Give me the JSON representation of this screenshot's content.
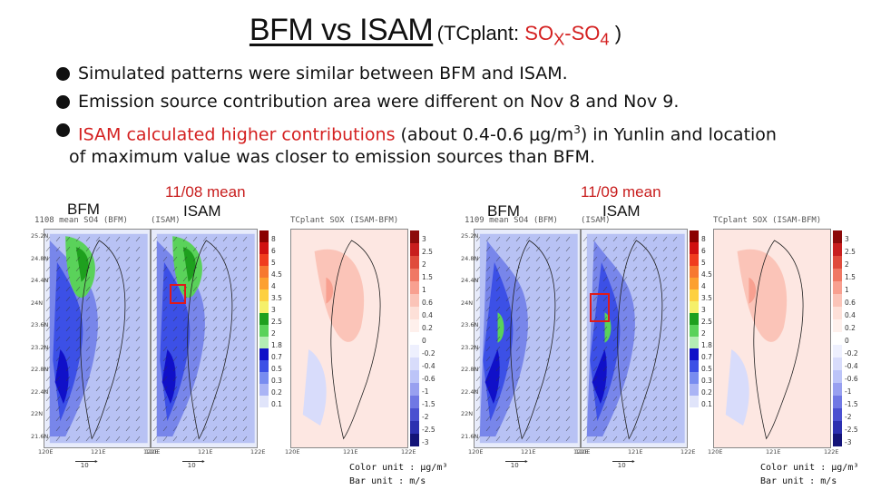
{
  "title": {
    "main": "BFM vs ISAM",
    "sub_prefix": "(TCplant: ",
    "sub_species_a": "SO",
    "sub_species_a_sub": "X",
    "sub_dash": "-SO",
    "sub_species_b_sub": "4",
    "sub_suffix": " )"
  },
  "bullets": {
    "b1": "Simulated patterns were similar between BFM and ISAM.",
    "b2": "Emission source contribution area were different on Nov 8 and Nov 9.",
    "b3_red": "ISAM calculated higher contributions",
    "b3_rest": " (about 0.4-0.6 μg/m",
    "b3_sup": "3",
    "b3_end": ") in Yunlin and location",
    "b3_cont": "of maximum value was closer to emission sources than BFM."
  },
  "labels": {
    "bfm1": "BFM",
    "mean1": "11/08 mean",
    "isam1": "ISAM",
    "bfm2": "BFM",
    "mean2": "11/09 mean",
    "isam2": "ISAM"
  },
  "panels": {
    "p1_title": "1108 mean SO4 (BFM)",
    "p2_title": "(ISAM)",
    "p3_title": "TCplant SOX (ISAM-BFM)",
    "p4_title": "1109 mean SO4 (BFM)",
    "p5_title": "(ISAM)",
    "p6_title": "TCplant SOX (ISAM-BFM)"
  },
  "colorbar_conc_ticks": [
    "8",
    "6",
    "5",
    "4.5",
    "4",
    "3.5",
    "3",
    "2.5",
    "2",
    "1.8",
    "0.7",
    "0.5",
    "0.3",
    "0.2",
    "0.1"
  ],
  "colorbar_diff_ticks": [
    "3",
    "2.5",
    "2",
    "1.5",
    "1",
    "0.6",
    "0.4",
    "0.2",
    "0",
    "-0.2",
    "-0.4",
    "-0.6",
    "-1",
    "-1.5",
    "-2",
    "-2.5",
    "-3"
  ],
  "lat_ticks": [
    "25.2N",
    "24.8N",
    "24.4N",
    "24N",
    "23.6N",
    "23.2N",
    "22.8N",
    "22.4N",
    "22N",
    "21.6N"
  ],
  "lon_ticks": [
    "120E",
    "121E",
    "122E"
  ],
  "ref_vector": "10",
  "units": {
    "color": "Color unit : μg/m³",
    "bar": "Bar unit : m/s"
  },
  "colors": {
    "accent_red": "#d42020",
    "conc_scale": [
      "#8b0000",
      "#d01010",
      "#f03c1e",
      "#f77830",
      "#fca030",
      "#fdd040",
      "#f5f06a",
      "#1ea01e",
      "#5ad25a",
      "#b4ecb4",
      "#1010c8",
      "#3c50e6",
      "#788cf0",
      "#aab4f5",
      "#e0e4fa"
    ],
    "diff_scale": [
      "#8c0a0a",
      "#c81e1e",
      "#e04b3c",
      "#f07864",
      "#f8a090",
      "#fbc4b8",
      "#fde0d8",
      "#fef0ec",
      "#ffffff",
      "#eef0fe",
      "#d8dcfb",
      "#bcc4f8",
      "#98a0f0",
      "#7078e4",
      "#4a50d0",
      "#2c30b0",
      "#141478"
    ]
  }
}
